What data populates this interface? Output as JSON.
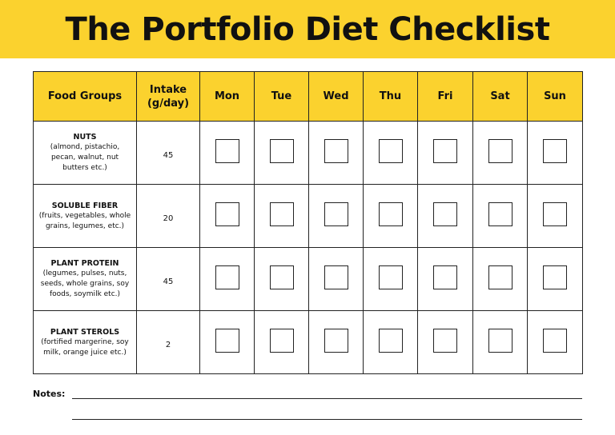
{
  "title": "The Portfolio Diet Checklist",
  "colors": {
    "accent": "#FBD22E",
    "border": "#222222"
  },
  "table": {
    "headers": {
      "food_groups": "Food Groups",
      "intake": "Intake (g/day)",
      "days": [
        "Mon",
        "Tue",
        "Wed",
        "Thu",
        "Fri",
        "Sat",
        "Sun"
      ]
    },
    "rows": [
      {
        "name": "NUTS",
        "desc": "(almond, pistachio, pecan, walnut, nut butters etc.)",
        "intake": "45"
      },
      {
        "name": "SOLUBLE FIBER",
        "desc": "(fruits, vegetables, whole grains, legumes, etc.)",
        "intake": "20"
      },
      {
        "name": "PLANT PROTEIN",
        "desc": "(legumes, pulses, nuts, seeds, whole grains, soy foods, soymilk etc.)",
        "intake": "45"
      },
      {
        "name": "PLANT STEROLS",
        "desc": "(fortified margerine, soy milk, orange juice etc.)",
        "intake": "2"
      }
    ]
  },
  "notes": {
    "label": "Notes:"
  }
}
